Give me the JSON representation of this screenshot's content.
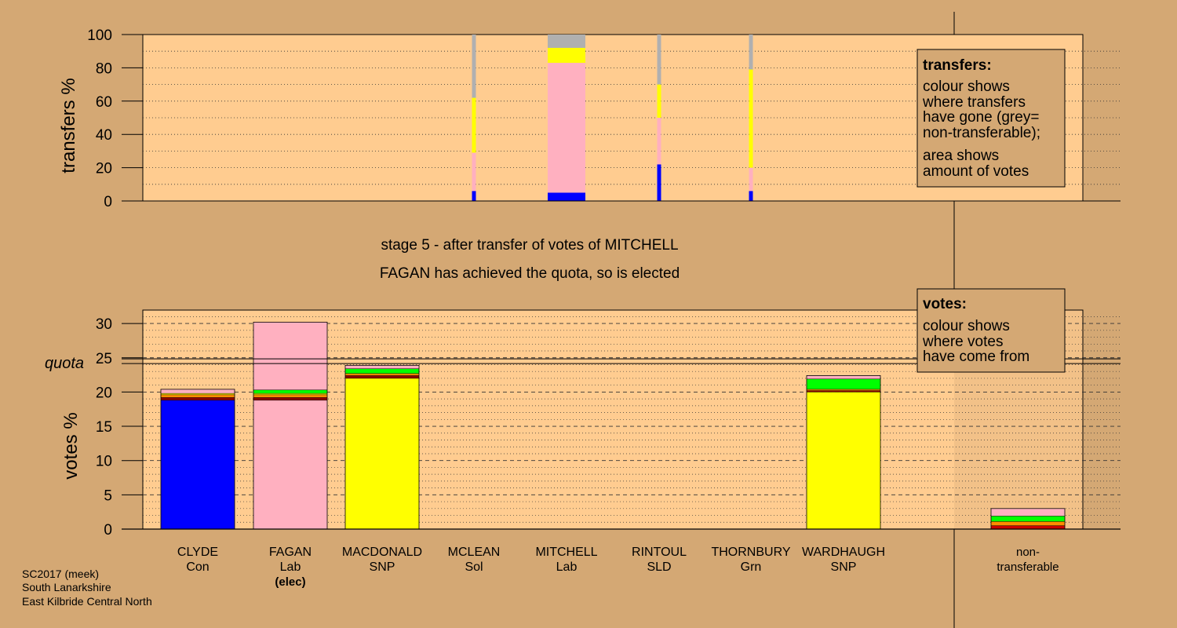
{
  "chart_data": [
    {
      "type": "bar",
      "stacked": true,
      "panel": "transfers",
      "ylabel": "transfers %",
      "ylim": [
        0,
        100
      ],
      "yticks": [
        0,
        20,
        40,
        60,
        80,
        100
      ],
      "grid": "dotted",
      "colors": {
        "Con": "#0000ff",
        "Lab": "#ffb0c0",
        "SNP": "#ffff00",
        "nontransferable": "#b0b0b0"
      },
      "columns": [
        {
          "name": "MCLEAN",
          "width": "narrow",
          "segments": [
            {
              "party": "Con",
              "color": "#0000ff",
              "value": 6
            },
            {
              "party": "Lab",
              "color": "#ffb0c0",
              "value": 23
            },
            {
              "party": "SNP",
              "color": "#ffff00",
              "value": 33
            },
            {
              "party": "non-transferable",
              "color": "#b0b0b0",
              "value": 38
            }
          ]
        },
        {
          "name": "MITCHELL",
          "width": "wide",
          "segments": [
            {
              "party": "Con",
              "color": "#0000ff",
              "value": 5
            },
            {
              "party": "Lab",
              "color": "#ffb0c0",
              "value": 78
            },
            {
              "party": "SNP",
              "color": "#ffff00",
              "value": 9
            },
            {
              "party": "non-transferable",
              "color": "#b0b0b0",
              "value": 8
            }
          ]
        },
        {
          "name": "RINTOUL",
          "width": "narrow",
          "segments": [
            {
              "party": "Con",
              "color": "#0000ff",
              "value": 22
            },
            {
              "party": "Lab",
              "color": "#ffb0c0",
              "value": 28
            },
            {
              "party": "SNP",
              "color": "#ffff00",
              "value": 20
            },
            {
              "party": "non-transferable",
              "color": "#b0b0b0",
              "value": 30
            }
          ]
        },
        {
          "name": "THORNBURY",
          "width": "narrow",
          "segments": [
            {
              "party": "Con",
              "color": "#0000ff",
              "value": 6
            },
            {
              "party": "Lab",
              "color": "#ffb0c0",
              "value": 14
            },
            {
              "party": "SNP",
              "color": "#ffff00",
              "value": 59
            },
            {
              "party": "non-transferable",
              "color": "#b0b0b0",
              "value": 21
            }
          ]
        }
      ],
      "legend": {
        "title": "transfers:",
        "lines1": [
          "colour shows",
          "where transfers",
          "have gone (grey=",
          "non-transferable);"
        ],
        "lines2": [
          "area shows",
          "amount of votes"
        ]
      }
    },
    {
      "type": "bar",
      "stacked": true,
      "panel": "votes",
      "ylabel": "votes %",
      "ylim": [
        0,
        32
      ],
      "yticks": [
        0,
        5,
        10,
        15,
        20,
        25,
        30
      ],
      "quota": 24.5,
      "quota_label": "quota",
      "grid": "dashed",
      "candidates": [
        {
          "name": "CLYDE",
          "party": "Con",
          "note": "",
          "segments": [
            {
              "color": "#0000ff",
              "value": 18.8
            },
            {
              "color": "#8b0000",
              "value": 0.4
            },
            {
              "color": "#ff8c00",
              "value": 0.4
            },
            {
              "color": "#ffff00",
              "value": 0.2
            },
            {
              "color": "#ffb0c0",
              "value": 0.6
            }
          ]
        },
        {
          "name": "FAGAN",
          "party": "Lab",
          "note": "(elec)",
          "segments": [
            {
              "color": "#ffb0c0",
              "value": 18.8
            },
            {
              "color": "#8b0000",
              "value": 0.4
            },
            {
              "color": "#ff8c00",
              "value": 0.4
            },
            {
              "color": "#ffff00",
              "value": 0.2
            },
            {
              "color": "#00ff00",
              "value": 0.5
            },
            {
              "color": "#ffb0c0",
              "value": 9.9
            }
          ]
        },
        {
          "name": "MACDONALD",
          "party": "SNP",
          "note": "",
          "segments": [
            {
              "color": "#ffff00",
              "value": 22.0
            },
            {
              "color": "#8b0000",
              "value": 0.4
            },
            {
              "color": "#ff8c00",
              "value": 0.3
            },
            {
              "color": "#00ff00",
              "value": 0.7
            },
            {
              "color": "#ffb0c0",
              "value": 0.5
            }
          ]
        },
        {
          "name": "MCLEAN",
          "party": "Sol",
          "note": "",
          "segments": []
        },
        {
          "name": "MITCHELL",
          "party": "Lab",
          "note": "",
          "segments": []
        },
        {
          "name": "RINTOUL",
          "party": "SLD",
          "note": "",
          "segments": []
        },
        {
          "name": "THORNBURY",
          "party": "Grn",
          "note": "",
          "segments": []
        },
        {
          "name": "WARDHAUGH",
          "party": "SNP",
          "note": "",
          "segments": [
            {
              "color": "#ffff00",
              "value": 20.0
            },
            {
              "color": "#8b0000",
              "value": 0.2
            },
            {
              "color": "#ff8c00",
              "value": 0.2
            },
            {
              "color": "#00ff00",
              "value": 1.5
            },
            {
              "color": "#ffb0c0",
              "value": 0.5
            }
          ]
        }
      ],
      "nontransferable": {
        "label1": "non-",
        "label2": "transferable",
        "segments": [
          {
            "color": "#cc0000",
            "value": 0.5
          },
          {
            "color": "#ff8c00",
            "value": 0.6
          },
          {
            "color": "#00ff00",
            "value": 0.8
          },
          {
            "color": "#ffb0c0",
            "value": 1.1
          }
        ]
      },
      "legend": {
        "title": "votes:",
        "lines": [
          "colour shows",
          "where votes",
          "have come from"
        ]
      }
    }
  ],
  "stage_text": "stage 5 - after transfer of votes of MITCHELL",
  "elected_text": "FAGAN has achieved the quota, so is elected",
  "footer": [
    "SC2017 (meek)",
    "South Lanarkshire",
    "East Kilbride Central North"
  ]
}
